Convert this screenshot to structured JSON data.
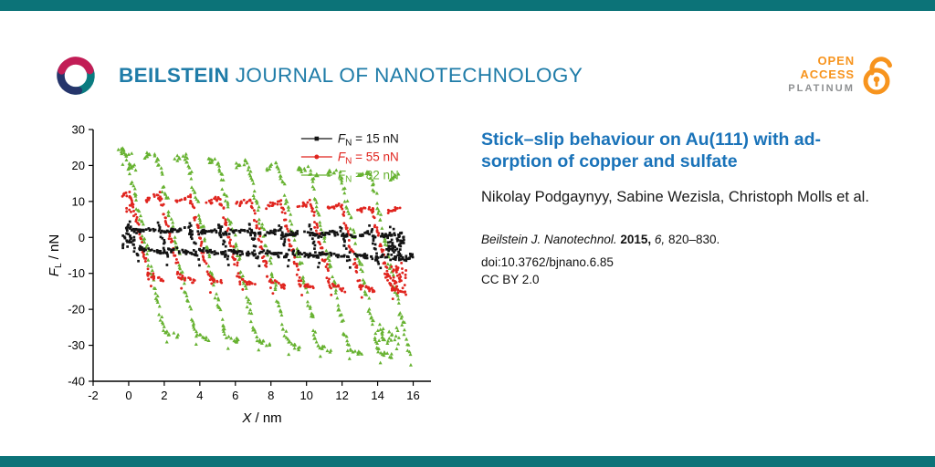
{
  "page": {
    "accent_bar_color": "#0c7378",
    "background": "#ffffff"
  },
  "header": {
    "journal_bold": "BEILSTEIN",
    "journal_rest": "JOURNAL OF NANOTECHNOLOGY",
    "brand_color": "#1f7ca8",
    "logo_icon": "beilstein-swirl-icon",
    "open_access": {
      "open": "OPEN",
      "access": "ACCESS",
      "platinum": "PLATINUM",
      "icon": "open-padlock-icon",
      "orange": "#f7941e",
      "gray": "#8e9092"
    }
  },
  "article": {
    "title_lines": [
      "Stick–slip behaviour on Au(111) with ad-",
      "sorption of copper and sulfate"
    ],
    "title_color": "#1a73b9",
    "authors": "Nikolay Podgaynyy, Sabine Wezisla, Christoph Molls et al.",
    "citation": {
      "journal": "Beilstein J. Nanotechnol.",
      "year": "2015,",
      "volume": "6,",
      "pages": "820–830."
    },
    "doi": "doi:10.3762/bjnano.6.85",
    "license": "CC BY 2.0"
  },
  "chart_data": {
    "type": "scatter",
    "title": "",
    "xlabel": "X / nm",
    "ylabel": "FL / nN",
    "xlabel_parts": [
      "X",
      " / nm"
    ],
    "ylabel_parts": [
      "F",
      "L",
      " / nN"
    ],
    "xlim": [
      -2,
      17
    ],
    "ylim": [
      -40,
      30
    ],
    "xticks": [
      -2,
      0,
      2,
      4,
      6,
      8,
      10,
      12,
      14,
      16
    ],
    "yticks": [
      -40,
      -30,
      -20,
      -10,
      0,
      10,
      20,
      30
    ],
    "grid": false,
    "legend_position": "top-right",
    "description": "Lateral force friction loops (stick-slip sawtooth traces, forward and backward scans) on Au(111) at three normal loads; amplitude of the lateral-force loop grows with load.",
    "loads_nN": [
      15,
      55,
      82
    ],
    "series": [
      {
        "id": "fn15",
        "name": "FN = 15 nN",
        "legend": [
          "F",
          "N",
          "= 15 nN"
        ],
        "marker": "square",
        "color": "#141414",
        "lateral_force_range_nN": [
          -6,
          4
        ],
        "gen": {
          "top": 2.8,
          "bottom": -4.2,
          "tilt": -0.12,
          "period": 1.7,
          "slip_dx": 0.5,
          "x_start": 0,
          "x_end": 15.2,
          "band_fill": 1.0,
          "band_density": 16,
          "jit": 1.6,
          "over": 2.2,
          "diag_density": 1.4,
          "micro_steps": 3,
          "micro_amp": 1.2,
          "msize": 1.0,
          "start_blob": {
            "x": -0.35,
            "w": 0.7,
            "y1": -5,
            "y2": 3,
            "n": 22
          },
          "end_blob": {
            "x": 14.5,
            "w": 1.0,
            "y1": -7,
            "y2": 3,
            "n": 55
          }
        }
      },
      {
        "id": "fn55",
        "name": "FN = 55 nN",
        "legend": [
          "F",
          "N",
          "= 55 nN"
        ],
        "marker": "circle",
        "color": "#e0251f",
        "lateral_force_range_nN": [
          -15,
          13
        ],
        "gen": {
          "top": 12,
          "bottom": -11.5,
          "tilt": -0.25,
          "period": 1.7,
          "slip_dx": 1.25,
          "x_start": 0,
          "x_end": 15.2,
          "band_fill": 0.45,
          "band_density": 16,
          "jit": 1.8,
          "over": 1.0,
          "diag_density": 1.5,
          "micro_steps": 5,
          "micro_amp": 1.6,
          "msize": 1.0,
          "start_blob": {
            "x": -0.15,
            "w": 0.5,
            "y1": 6,
            "y2": 12,
            "n": 10
          },
          "end_blob": {
            "x": 14.4,
            "w": 1.2,
            "y1": -15,
            "y2": -7,
            "n": 40
          }
        }
      },
      {
        "id": "fn82",
        "name": "FN = 82 nN",
        "legend": [
          "F",
          "N",
          "= 82 nN"
        ],
        "marker": "triangle",
        "color": "#67b231",
        "lateral_force_range_nN": [
          -34,
          25
        ],
        "gen": {
          "top": 24,
          "bottom": -26.5,
          "tilt": -0.45,
          "period": 1.72,
          "slip_dx": 2.3,
          "x_start": -0.2,
          "x_end": 15.0,
          "band_fill": 0.4,
          "band_density": 13,
          "jit": 2.0,
          "over": 0.5,
          "diag_density": 1.1,
          "micro_steps": 7,
          "micro_amp": 2.2,
          "msize": 1.15,
          "start_blob": {
            "x": -0.4,
            "w": 0.8,
            "y1": 17,
            "y2": 24,
            "n": 12
          },
          "end_blob": {
            "x": 14.0,
            "w": 1.2,
            "y1": -33,
            "y2": -23,
            "n": 30
          }
        }
      }
    ]
  }
}
